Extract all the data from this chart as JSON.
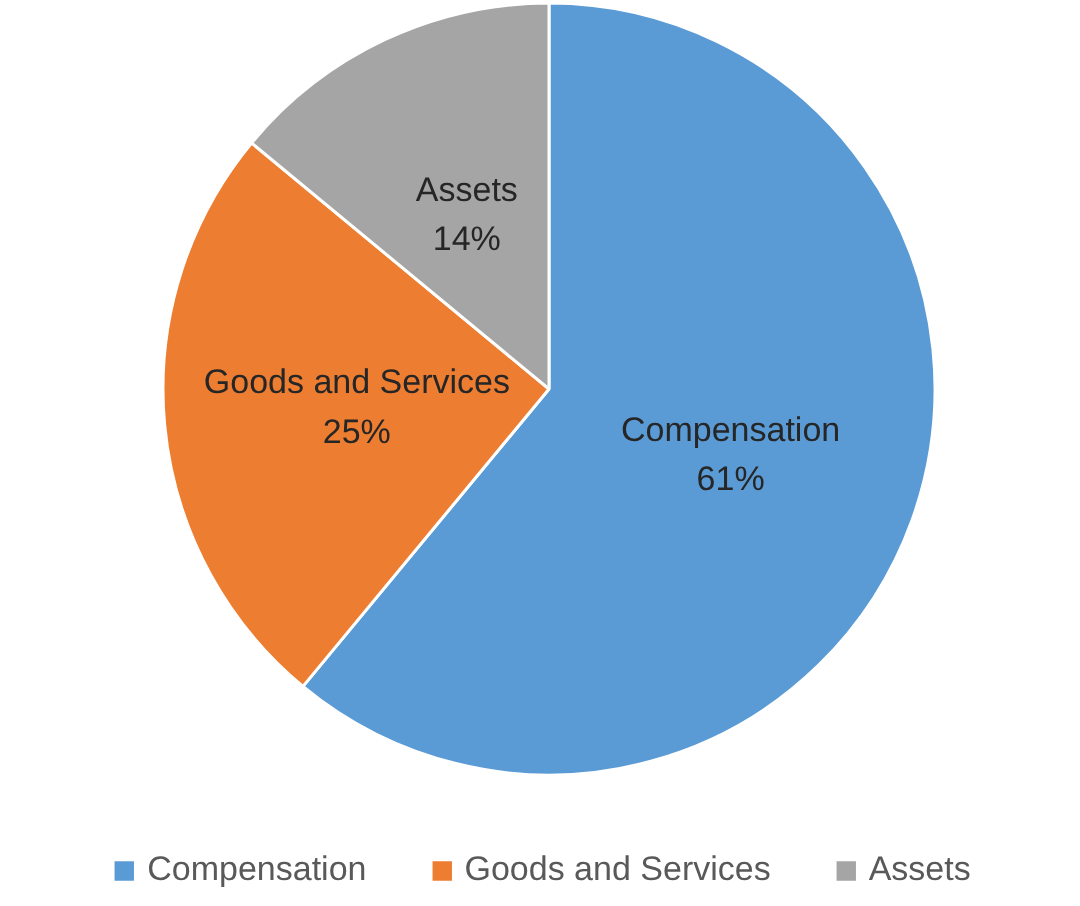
{
  "chart_data": {
    "type": "pie",
    "categories": [
      "Compensation",
      "Goods and Services",
      "Assets"
    ],
    "values": [
      61,
      25,
      14
    ],
    "value_labels": [
      "61%",
      "25%",
      "14%"
    ],
    "colors": [
      "#5b9bd5",
      "#ed7d31",
      "#a5a5a5"
    ],
    "legend": "bottom"
  }
}
